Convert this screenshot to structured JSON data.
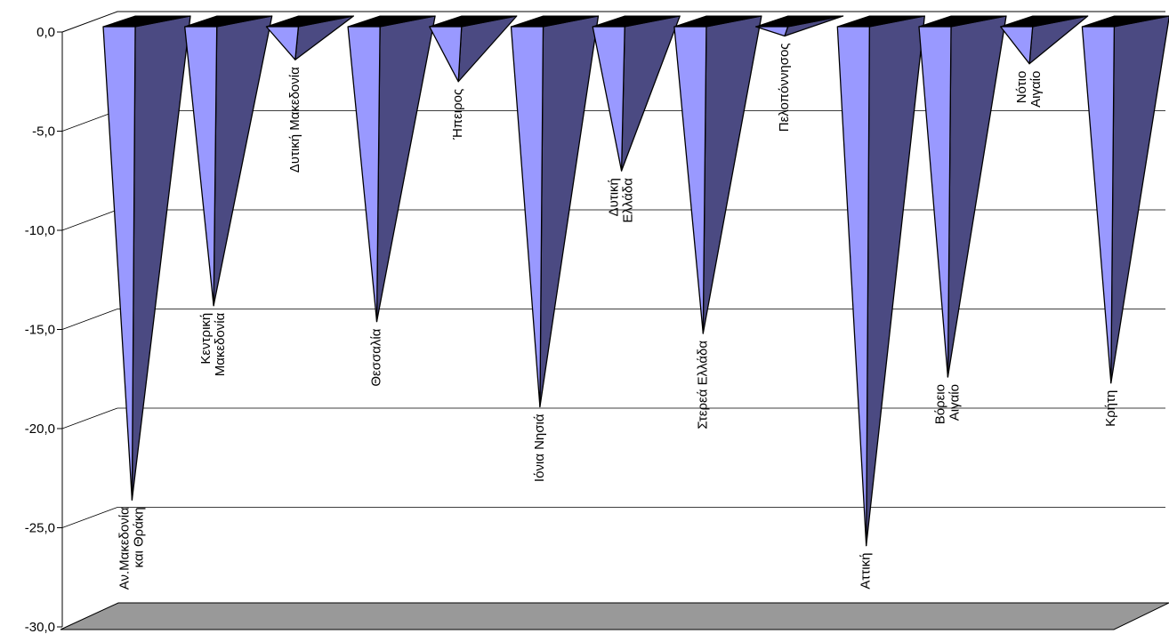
{
  "chart_data": {
    "type": "bar",
    "style": "3d-inverted-pyramid",
    "title": "",
    "xlabel": "",
    "ylabel": "",
    "ylim": [
      -30,
      0
    ],
    "yticks": [
      0,
      -5,
      -10,
      -15,
      -20,
      -25,
      -30
    ],
    "ytick_labels": [
      "0,0",
      "-5,0",
      "-10,0",
      "-15,0",
      "-20,0",
      "-25,0",
      "-30,0"
    ],
    "grid": true,
    "legend": "none",
    "categories": [
      [
        "Αν.Μακεδονία",
        "και Θράκη"
      ],
      [
        "Κεντρική",
        "Μακεδονία"
      ],
      [
        "Δυτική Μακεδονία"
      ],
      [
        "Θεσσαλία"
      ],
      [
        "Ήπειρος"
      ],
      [
        "Ιόνια Νησιά"
      ],
      [
        "Δυτική",
        "Ελλάδα"
      ],
      [
        "Στερεά Ελλάδα"
      ],
      [
        "Πελοπόννησος"
      ],
      [
        "Αττική"
      ],
      [
        "Βόρειο",
        "Αιγαίο"
      ],
      [
        "Νότιο",
        "Αιγαίο"
      ],
      [
        "Κρήτη"
      ]
    ],
    "values": [
      -23.6,
      -13.8,
      -1.4,
      -14.6,
      -2.5,
      -18.9,
      -7.0,
      -15.2,
      -0.2,
      -25.9,
      -17.4,
      -1.6,
      -17.7
    ],
    "colors": {
      "front_face": "#9999ff",
      "side_face": "#4b4a82",
      "floor": "#999999",
      "gridline": "#000000",
      "outline": "#000000"
    }
  }
}
